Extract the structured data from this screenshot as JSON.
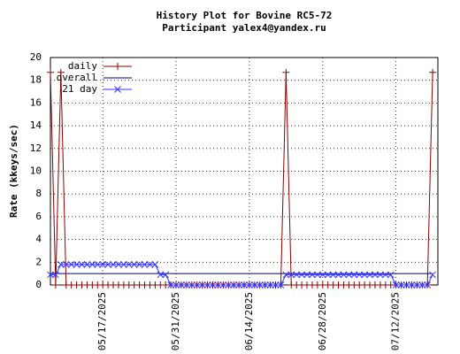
{
  "chart_data": {
    "type": "line",
    "title": "History Plot for Bovine RC5-72",
    "subtitle": "Participant yalex4@yandex.ru",
    "y_label": "Rate (kkeys/sec)",
    "x": [
      "2025-05-07",
      "2025-05-08",
      "2025-05-09",
      "2025-05-10",
      "2025-05-11",
      "2025-05-12",
      "2025-05-13",
      "2025-05-14",
      "2025-05-15",
      "2025-05-16",
      "2025-05-17",
      "2025-05-18",
      "2025-05-19",
      "2025-05-20",
      "2025-05-21",
      "2025-05-22",
      "2025-05-23",
      "2025-05-24",
      "2025-05-25",
      "2025-05-26",
      "2025-05-27",
      "2025-05-28",
      "2025-05-29",
      "2025-05-30",
      "2025-05-31",
      "2025-06-01",
      "2025-06-02",
      "2025-06-03",
      "2025-06-04",
      "2025-06-05",
      "2025-06-06",
      "2025-06-07",
      "2025-06-08",
      "2025-06-09",
      "2025-06-10",
      "2025-06-11",
      "2025-06-12",
      "2025-06-13",
      "2025-06-14",
      "2025-06-15",
      "2025-06-16",
      "2025-06-17",
      "2025-06-18",
      "2025-06-19",
      "2025-06-20",
      "2025-06-21",
      "2025-06-22",
      "2025-06-23",
      "2025-06-24",
      "2025-06-25",
      "2025-06-26",
      "2025-06-27",
      "2025-06-28",
      "2025-06-29",
      "2025-06-30",
      "2025-07-01",
      "2025-07-02",
      "2025-07-03",
      "2025-07-04",
      "2025-07-05",
      "2025-07-06",
      "2025-07-07",
      "2025-07-08",
      "2025-07-09",
      "2025-07-10",
      "2025-07-11",
      "2025-07-12",
      "2025-07-13",
      "2025-07-14",
      "2025-07-15",
      "2025-07-16",
      "2025-07-17",
      "2025-07-18",
      "2025-07-19"
    ],
    "series": [
      {
        "name": "daily",
        "color": "#8b0000",
        "marker": "plus",
        "values": [
          18.7,
          0,
          18.7,
          0,
          0,
          0,
          0,
          0,
          0,
          0,
          0,
          0,
          0,
          0,
          0,
          0,
          0,
          0,
          0,
          0,
          0,
          0,
          0,
          0,
          0,
          0,
          0,
          0,
          0,
          0,
          0,
          0,
          0,
          0,
          0,
          0,
          0,
          0,
          0,
          0,
          0,
          0,
          0,
          0,
          0,
          18.7,
          0,
          0,
          0,
          0,
          0,
          0,
          0,
          0,
          0,
          0,
          0,
          0,
          0,
          0,
          0,
          0,
          0,
          0,
          0,
          0,
          0,
          0,
          0,
          0,
          0,
          0,
          0,
          18.7
        ]
      },
      {
        "name": "overall",
        "color": "#000080",
        "marker": "none",
        "values": [
          1,
          1,
          1,
          1,
          1,
          1,
          1,
          1,
          1,
          1,
          1,
          1,
          1,
          1,
          1,
          1,
          1,
          1,
          1,
          1,
          1,
          1,
          1,
          1,
          1,
          1,
          1,
          1,
          1,
          1,
          1,
          1,
          1,
          1,
          1,
          1,
          1,
          1,
          1,
          1,
          1,
          1,
          1,
          1,
          1,
          1,
          1,
          1,
          1,
          1,
          1,
          1,
          1,
          1,
          1,
          1,
          1,
          1,
          1,
          1,
          1,
          1,
          1,
          1,
          1,
          1,
          1,
          1,
          1,
          1,
          1,
          1,
          1,
          1
        ]
      },
      {
        "name": "21 day",
        "color": "#3333ff",
        "marker": "cross",
        "values": [
          0.9,
          0.9,
          1.8,
          1.8,
          1.8,
          1.8,
          1.8,
          1.8,
          1.8,
          1.8,
          1.8,
          1.8,
          1.8,
          1.8,
          1.8,
          1.8,
          1.8,
          1.8,
          1.8,
          1.8,
          1.8,
          0.9,
          0.9,
          0,
          0,
          0,
          0,
          0,
          0,
          0,
          0,
          0,
          0,
          0,
          0,
          0,
          0,
          0,
          0,
          0,
          0,
          0,
          0,
          0,
          0,
          0.9,
          0.9,
          0.9,
          0.9,
          0.9,
          0.9,
          0.9,
          0.9,
          0.9,
          0.9,
          0.9,
          0.9,
          0.9,
          0.9,
          0.9,
          0.9,
          0.9,
          0.9,
          0.9,
          0.9,
          0.9,
          0,
          0,
          0,
          0,
          0,
          0,
          0,
          0.9
        ]
      }
    ],
    "xlim": [
      "2025-05-07",
      "2025-07-20"
    ],
    "xticks": [
      {
        "value": "2025-05-17",
        "label": "05/17/2025"
      },
      {
        "value": "2025-05-31",
        "label": "05/31/2025"
      },
      {
        "value": "2025-06-14",
        "label": "06/14/2025"
      },
      {
        "value": "2025-06-28",
        "label": "06/28/2025"
      },
      {
        "value": "2025-07-12",
        "label": "07/12/2025"
      }
    ],
    "ylim": [
      0,
      20
    ],
    "yticks": [
      0,
      2,
      4,
      6,
      8,
      10,
      12,
      14,
      16,
      18,
      20
    ],
    "grid": true,
    "legend": "top-left"
  }
}
